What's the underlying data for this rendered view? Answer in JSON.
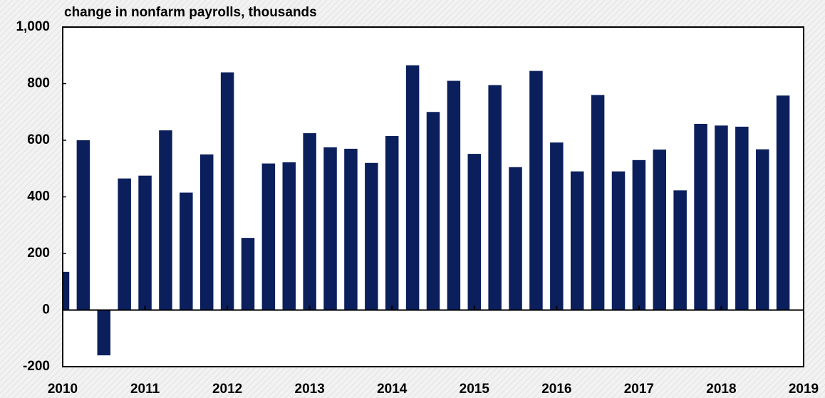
{
  "chart_data": {
    "type": "bar",
    "title": "change in nonfarm payrolls, thousands",
    "color": "#0b1f5c",
    "x": [
      2010,
      2010.25,
      2010.5,
      2010.75,
      2011,
      2011.25,
      2011.5,
      2011.75,
      2012,
      2012.25,
      2012.5,
      2012.75,
      2013,
      2013.25,
      2013.5,
      2013.75,
      2014,
      2014.25,
      2014.5,
      2014.75,
      2015,
      2015.25,
      2015.5,
      2015.75,
      2016,
      2016.25,
      2016.5,
      2016.75,
      2017,
      2017.25,
      2017.5,
      2017.75,
      2018,
      2018.25,
      2018.5,
      2018.75
    ],
    "values": [
      135,
      600,
      -160,
      465,
      475,
      635,
      415,
      550,
      840,
      255,
      518,
      522,
      625,
      575,
      570,
      520,
      615,
      865,
      700,
      810,
      552,
      795,
      505,
      845,
      592,
      490,
      760,
      490,
      530,
      567,
      423,
      658,
      652,
      648,
      568,
      758
    ],
    "xlim": [
      2010,
      2019
    ],
    "xticks": [
      2010,
      2011,
      2012,
      2013,
      2014,
      2015,
      2016,
      2017,
      2018,
      2019
    ],
    "ylim": [
      -200,
      1000
    ],
    "yticks": [
      -200,
      0,
      200,
      400,
      600,
      800,
      {
        "value": 1000,
        "label": "1,000"
      }
    ]
  }
}
